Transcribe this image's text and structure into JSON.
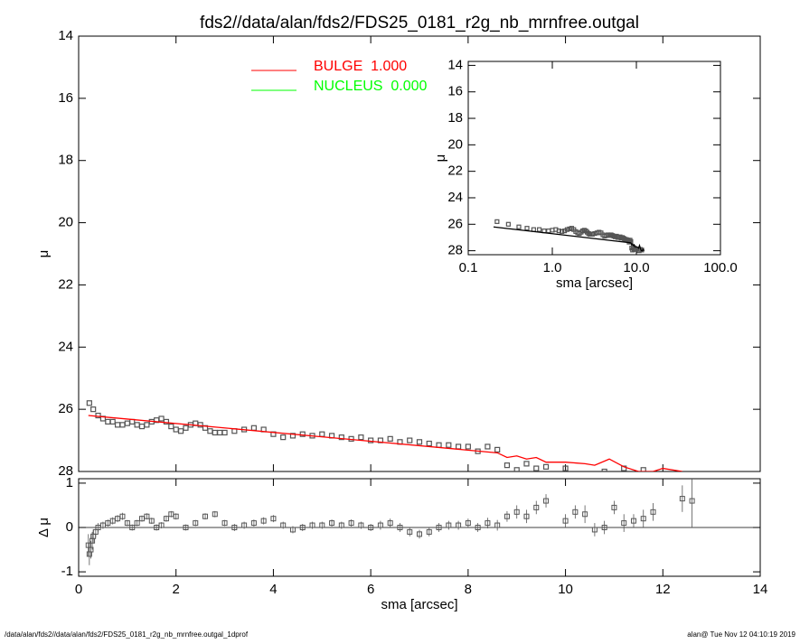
{
  "chart_data": [
    {
      "type": "profile",
      "title": "fds2//data/alan/fds2/FDS25_0181_r2g_nb_mrnfree.outgal",
      "ylabel": "μ",
      "xlim": [
        0,
        14
      ],
      "xticks": [
        0,
        2,
        4,
        6,
        8,
        10,
        12,
        14
      ],
      "ylim": [
        28,
        14
      ],
      "yticks": [
        14,
        16,
        18,
        20,
        22,
        24,
        26,
        28
      ],
      "legend": [
        {
          "label": "BULGE  1.000",
          "color": "#ff0000"
        },
        {
          "label": "NUCLEUS  0.000",
          "color": "#00ff00"
        }
      ],
      "series": [
        {
          "kind": "points",
          "color": "#555555",
          "x": [
            0.22,
            0.3,
            0.4,
            0.5,
            0.6,
            0.7,
            0.8,
            0.9,
            1.0,
            1.1,
            1.2,
            1.3,
            1.4,
            1.5,
            1.6,
            1.7,
            1.8,
            1.9,
            2.0,
            2.1,
            2.2,
            2.3,
            2.4,
            2.5,
            2.6,
            2.7,
            2.8,
            2.9,
            3.0,
            3.2,
            3.4,
            3.6,
            3.8,
            4.0,
            4.2,
            4.4,
            4.6,
            4.8,
            5.0,
            5.2,
            5.4,
            5.6,
            5.8,
            6.0,
            6.2,
            6.4,
            6.6,
            6.8,
            7.0,
            7.2,
            7.4,
            7.6,
            7.8,
            8.0,
            8.2,
            8.4,
            8.6,
            8.8,
            9.0,
            9.2,
            9.4,
            9.6,
            10.0,
            10.8,
            11.2,
            11.6
          ],
          "values": [
            25.8,
            26.0,
            26.2,
            26.3,
            26.4,
            26.4,
            26.5,
            26.5,
            26.45,
            26.4,
            26.5,
            26.55,
            26.5,
            26.4,
            26.35,
            26.3,
            26.4,
            26.55,
            26.65,
            26.7,
            26.6,
            26.5,
            26.45,
            26.5,
            26.6,
            26.7,
            26.75,
            26.75,
            26.75,
            26.7,
            26.65,
            26.6,
            26.65,
            26.8,
            26.9,
            26.85,
            26.8,
            26.85,
            26.8,
            26.85,
            26.9,
            26.95,
            26.9,
            27.0,
            27.0,
            26.95,
            27.05,
            27.0,
            27.05,
            27.1,
            27.15,
            27.15,
            27.2,
            27.2,
            27.35,
            27.2,
            27.3,
            27.8,
            27.95,
            27.75,
            27.9,
            27.85,
            27.9,
            28.0,
            27.9,
            27.95
          ]
        },
        {
          "kind": "line",
          "color": "#ff0000",
          "x": [
            0.2,
            8.6,
            8.8,
            9.0,
            9.2,
            9.4,
            9.6,
            10.0,
            10.4,
            10.6,
            10.9,
            11.2,
            11.5,
            11.8,
            12.0,
            12.4
          ],
          "values": [
            26.2,
            27.4,
            27.55,
            27.5,
            27.6,
            27.55,
            27.7,
            27.7,
            27.75,
            27.8,
            27.6,
            27.85,
            28.0,
            28.0,
            27.9,
            28.0
          ]
        }
      ]
    },
    {
      "type": "residual",
      "xlabel": "sma [arcsec]",
      "ylabel": "Δ μ",
      "xlim": [
        0,
        14
      ],
      "xticks": [
        0,
        2,
        4,
        6,
        8,
        10,
        12,
        14
      ],
      "ylim": [
        -1.1,
        1.1
      ],
      "yticks": [
        -1,
        0,
        1
      ],
      "x": [
        0.2,
        0.22,
        0.25,
        0.28,
        0.3,
        0.35,
        0.4,
        0.5,
        0.6,
        0.7,
        0.8,
        0.9,
        1.0,
        1.1,
        1.2,
        1.3,
        1.4,
        1.5,
        1.6,
        1.7,
        1.8,
        1.9,
        2.0,
        2.2,
        2.4,
        2.6,
        2.8,
        3.0,
        3.2,
        3.4,
        3.6,
        3.8,
        4.0,
        4.2,
        4.4,
        4.6,
        4.8,
        5.0,
        5.2,
        5.4,
        5.6,
        5.8,
        6.0,
        6.2,
        6.4,
        6.6,
        6.8,
        7.0,
        7.2,
        7.4,
        7.6,
        7.8,
        8.0,
        8.2,
        8.4,
        8.6,
        8.8,
        9.0,
        9.2,
        9.4,
        9.6,
        10.0,
        10.2,
        10.4,
        10.6,
        10.8,
        11.0,
        11.2,
        11.4,
        11.6,
        11.8,
        12.4,
        12.6
      ],
      "values": [
        -0.4,
        -0.6,
        -0.5,
        -0.3,
        -0.2,
        -0.1,
        0.0,
        0.05,
        0.1,
        0.15,
        0.2,
        0.25,
        0.1,
        0.0,
        0.1,
        0.2,
        0.25,
        0.15,
        0.0,
        0.05,
        0.2,
        0.3,
        0.25,
        0.0,
        0.1,
        0.25,
        0.3,
        0.1,
        0.0,
        0.05,
        0.1,
        0.15,
        0.2,
        0.05,
        -0.05,
        0.0,
        0.05,
        0.05,
        0.1,
        0.05,
        0.1,
        0.05,
        0.0,
        0.05,
        0.1,
        0.0,
        -0.1,
        -0.15,
        -0.1,
        0.0,
        0.05,
        0.05,
        0.1,
        0.0,
        0.1,
        0.05,
        0.25,
        0.35,
        0.25,
        0.45,
        0.6,
        0.15,
        0.35,
        0.3,
        -0.05,
        0.0,
        0.45,
        0.1,
        0.15,
        0.2,
        0.35,
        0.65,
        0.6
      ],
      "errors": [
        0.25,
        0.25,
        0.2,
        0.2,
        0.15,
        0.12,
        0.1,
        0.08,
        0.08,
        0.08,
        0.08,
        0.08,
        0.07,
        0.07,
        0.07,
        0.07,
        0.07,
        0.07,
        0.07,
        0.07,
        0.07,
        0.07,
        0.07,
        0.07,
        0.07,
        0.07,
        0.07,
        0.07,
        0.08,
        0.08,
        0.08,
        0.08,
        0.08,
        0.08,
        0.08,
        0.08,
        0.08,
        0.08,
        0.08,
        0.08,
        0.08,
        0.08,
        0.08,
        0.1,
        0.1,
        0.1,
        0.1,
        0.1,
        0.1,
        0.1,
        0.1,
        0.1,
        0.1,
        0.1,
        0.12,
        0.12,
        0.12,
        0.15,
        0.15,
        0.15,
        0.15,
        0.15,
        0.15,
        0.2,
        0.15,
        0.15,
        0.15,
        0.2,
        0.15,
        0.2,
        0.2,
        0.3,
        0.6
      ],
      "color": "#555555"
    },
    {
      "type": "inset",
      "xlabel": "sma [arcsec]",
      "ylabel": "μ",
      "xscale": "log",
      "line_color": "#000000",
      "xlim": [
        0.1,
        100
      ],
      "xticks": [
        {
          "value": 0.1,
          "label": "0.1"
        },
        {
          "value": 1,
          "label": "1.0"
        },
        {
          "value": 10,
          "label": "10.0"
        },
        {
          "value": 100,
          "label": "100.0"
        }
      ],
      "ylim": [
        28.3,
        13.7
      ],
      "yticks": [
        14,
        16,
        18,
        20,
        22,
        24,
        26,
        28
      ]
    }
  ],
  "footer": {
    "left": "/data/alan/fds2//data/alan/fds2/FDS25_0181_r2g_nb_mrnfree.outgal_1dprof",
    "right": "alan@  Tue Nov 12 04:10:19 2019"
  }
}
